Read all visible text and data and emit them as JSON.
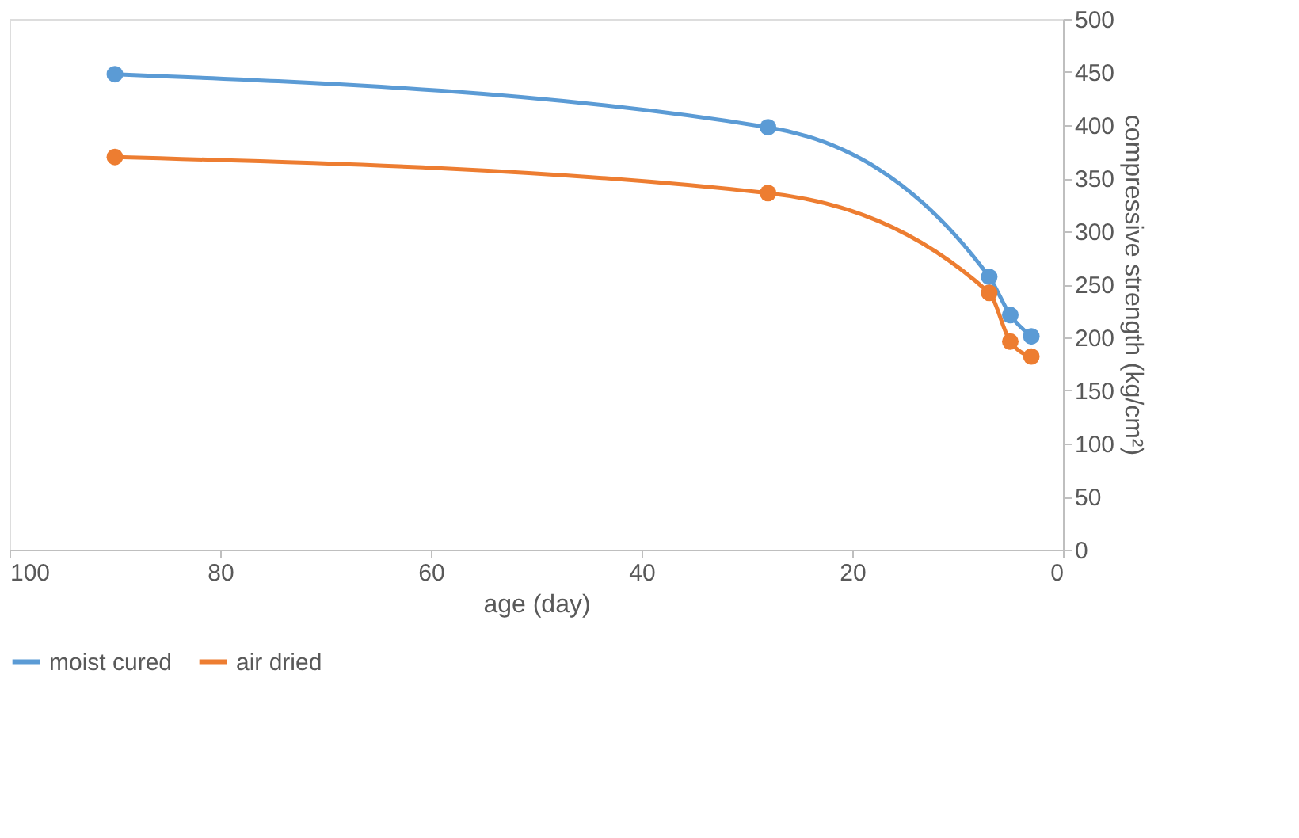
{
  "chart_data": {
    "type": "line",
    "xlabel": "age (day)",
    "ylabel": "compressive strength (kg/cm²)",
    "x": [
      90,
      28,
      7,
      5,
      3
    ],
    "series": [
      {
        "name": "moist cured",
        "color": "#5b9bd5",
        "values": [
          448,
          398,
          257,
          221,
          201
        ]
      },
      {
        "name": "air dried",
        "color": "#ed7d31",
        "values": [
          370,
          336,
          242,
          196,
          182
        ]
      }
    ],
    "xlim": [
      100,
      0
    ],
    "xticks": [
      100,
      80,
      60,
      40,
      20,
      0
    ],
    "ylim": [
      0,
      500
    ],
    "yticks": [
      0,
      50,
      100,
      150,
      200,
      250,
      300,
      350,
      400,
      450,
      500
    ],
    "grid": false,
    "legend": "bottom",
    "marker": "circle",
    "line_style": "solid"
  }
}
